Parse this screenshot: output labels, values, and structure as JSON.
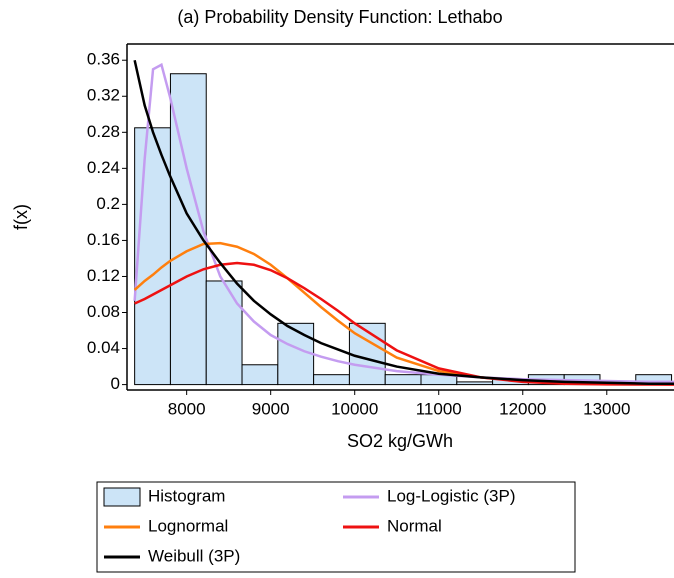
{
  "chart_data": {
    "type": "histogram-fit",
    "title": "(a) Probability Density Function: Lethabo",
    "xlabel": "SO2 kg/GWh",
    "ylabel": "f(x)",
    "xlim": [
      7290,
      13800
    ],
    "ylim": [
      -0.006,
      0.378
    ],
    "xticks": [
      8000,
      9000,
      10000,
      11000,
      12000,
      13000
    ],
    "yticks": [
      0,
      0.04,
      0.08,
      0.12,
      0.16,
      0.2,
      0.24,
      0.28,
      0.32,
      0.36
    ],
    "histogram": {
      "name": "Histogram",
      "color": "#cce4f7",
      "bins": [
        7381,
        7807,
        8233,
        8659,
        9085,
        9511,
        9937,
        10363,
        10789,
        11215,
        11641,
        12067,
        12493,
        12919,
        13345,
        13771
      ],
      "values": [
        0.285,
        0.345,
        0.115,
        0.022,
        0.068,
        0.011,
        0.068,
        0.011,
        0.011,
        0.003,
        0.006,
        0.011,
        0.011,
        0.003,
        0.011
      ]
    },
    "x": [
      7381,
      7500,
      7600,
      7700,
      7800,
      8000,
      8200,
      8400,
      8600,
      8800,
      9000,
      9200,
      9400,
      9600,
      9800,
      10000,
      10500,
      11000,
      11500,
      12000,
      12500,
      13000,
      13500,
      13800
    ],
    "series": [
      {
        "name": "Log-Logistic (3P)",
        "color": "#c49cf0",
        "values": [
          0.093,
          0.25,
          0.35,
          0.355,
          0.32,
          0.24,
          0.17,
          0.12,
          0.09,
          0.07,
          0.055,
          0.045,
          0.037,
          0.031,
          0.026,
          0.022,
          0.015,
          0.011,
          0.008,
          0.006,
          0.005,
          0.004,
          0.003,
          0.003
        ]
      },
      {
        "name": "Lognormal",
        "color": "#ff7f0e",
        "values": [
          0.105,
          0.115,
          0.122,
          0.13,
          0.137,
          0.148,
          0.156,
          0.157,
          0.153,
          0.145,
          0.133,
          0.118,
          0.102,
          0.086,
          0.071,
          0.057,
          0.03,
          0.015,
          0.008,
          0.004,
          0.002,
          0.001,
          0.0005,
          0.0003
        ]
      },
      {
        "name": "Normal",
        "color": "#ee1111",
        "values": [
          0.09,
          0.095,
          0.1,
          0.105,
          0.11,
          0.12,
          0.128,
          0.133,
          0.135,
          0.133,
          0.127,
          0.118,
          0.107,
          0.095,
          0.082,
          0.068,
          0.038,
          0.018,
          0.008,
          0.003,
          0.001,
          0.0003,
          0.0001,
          0
        ]
      },
      {
        "name": "Weibull (3P)",
        "color": "#000000",
        "values": [
          0.36,
          0.31,
          0.28,
          0.255,
          0.232,
          0.19,
          0.16,
          0.135,
          0.112,
          0.093,
          0.078,
          0.065,
          0.055,
          0.046,
          0.039,
          0.032,
          0.02,
          0.012,
          0.008,
          0.005,
          0.003,
          0.002,
          0.001,
          0.001
        ]
      }
    ]
  }
}
